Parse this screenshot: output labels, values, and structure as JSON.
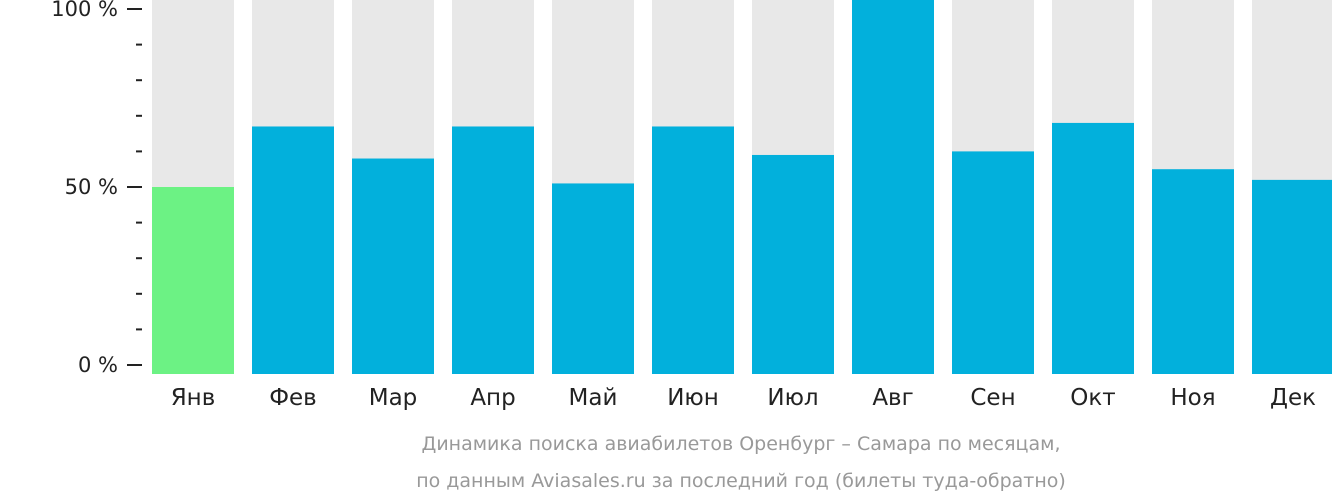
{
  "chart_data": {
    "type": "bar",
    "categories": [
      "Янв",
      "Фев",
      "Мар",
      "Апр",
      "Май",
      "Июн",
      "Июл",
      "Авг",
      "Сен",
      "Окт",
      "Ноя",
      "Дек"
    ],
    "values": [
      50,
      67,
      58,
      67,
      51,
      67,
      59,
      100,
      60,
      68,
      55,
      52
    ],
    "highlight_index": 0,
    "ylim": [
      0,
      100
    ],
    "yticks": [
      {
        "value": 0,
        "label": "0 %"
      },
      {
        "value": 50,
        "label": "50 %"
      },
      {
        "value": 100,
        "label": "100 %"
      }
    ],
    "minor_ticks": [
      10,
      20,
      30,
      40,
      60,
      70,
      80,
      90
    ],
    "caption_line1": "Динамика поиска авиабилетов Оренбург – Самара по месяцам,",
    "caption_line2": "по данным Aviasales.ru за последний год (билеты туда-обратно)",
    "colors": {
      "bar": "#02b0dc",
      "highlight": "#6cf284",
      "track": "#e8e8e8",
      "axis": "#222222",
      "caption": "#999999"
    }
  }
}
